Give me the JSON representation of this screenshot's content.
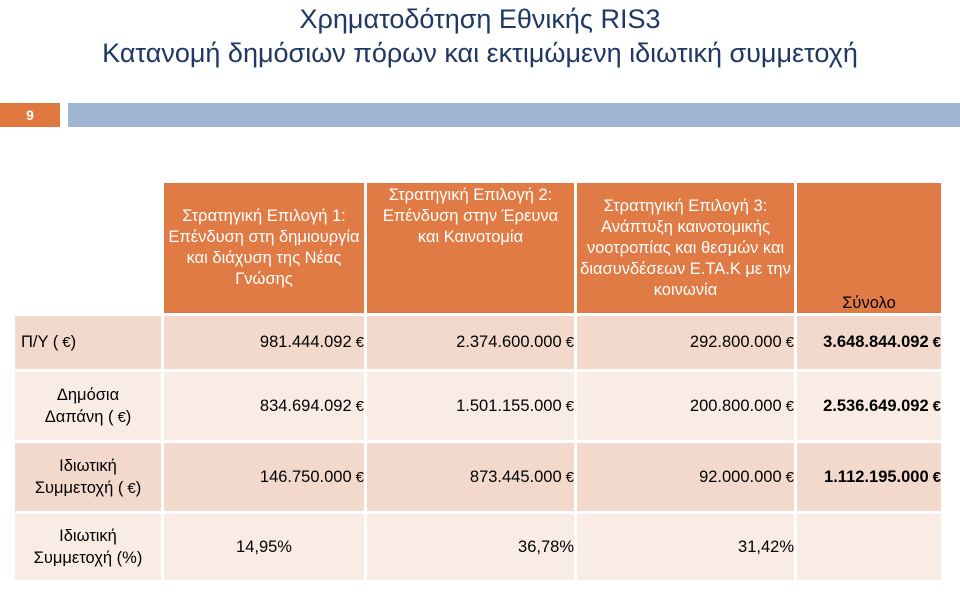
{
  "title": {
    "line1": "Χρηματοδότηση Εθνικής RIS3",
    "line2": "Κατανομή δημόσιων πόρων και εκτιμώμενη ιδιωτική συμμετοχή"
  },
  "slide_number": "9",
  "currency_symbol": "€",
  "table": {
    "headers": [
      "Στρατηγική Επιλογή 1: Επένδυση στη δημιουργία και διάχυση της Νέας Γνώσης",
      "Στρατηγική Επιλογή 2: Επένδυση στην Έρευνα και Καινοτομία",
      "Στρατηγική Επιλογή 3: Ανάπτυξη καινοτομικής νοοτροπίας και θεσμών και διασυνδέσεων Ε.ΤΑ.Κ με την κοινωνία",
      "Σύνολο"
    ],
    "rows": [
      {
        "label": "Π/Υ ( )",
        "values": [
          "981.444.092",
          "2.374.600.000",
          "292.800.000",
          "3.648.844.092"
        ]
      },
      {
        "label": "Δημόσια Δαπάνη ( )",
        "values": [
          "834.694.092",
          "1.501.155.000",
          "200.800.000",
          "2.536.649.092"
        ]
      },
      {
        "label": "Ιδιωτική Συμμετοχή ( )",
        "values": [
          "146.750.000",
          "873.445.000",
          "92.000.000",
          "1.112.195.000"
        ]
      },
      {
        "label": "Ιδιωτική Συμμετοχή (%)",
        "values": [
          "14,95%",
          "36,78%",
          "31,42%",
          ""
        ]
      }
    ]
  }
}
